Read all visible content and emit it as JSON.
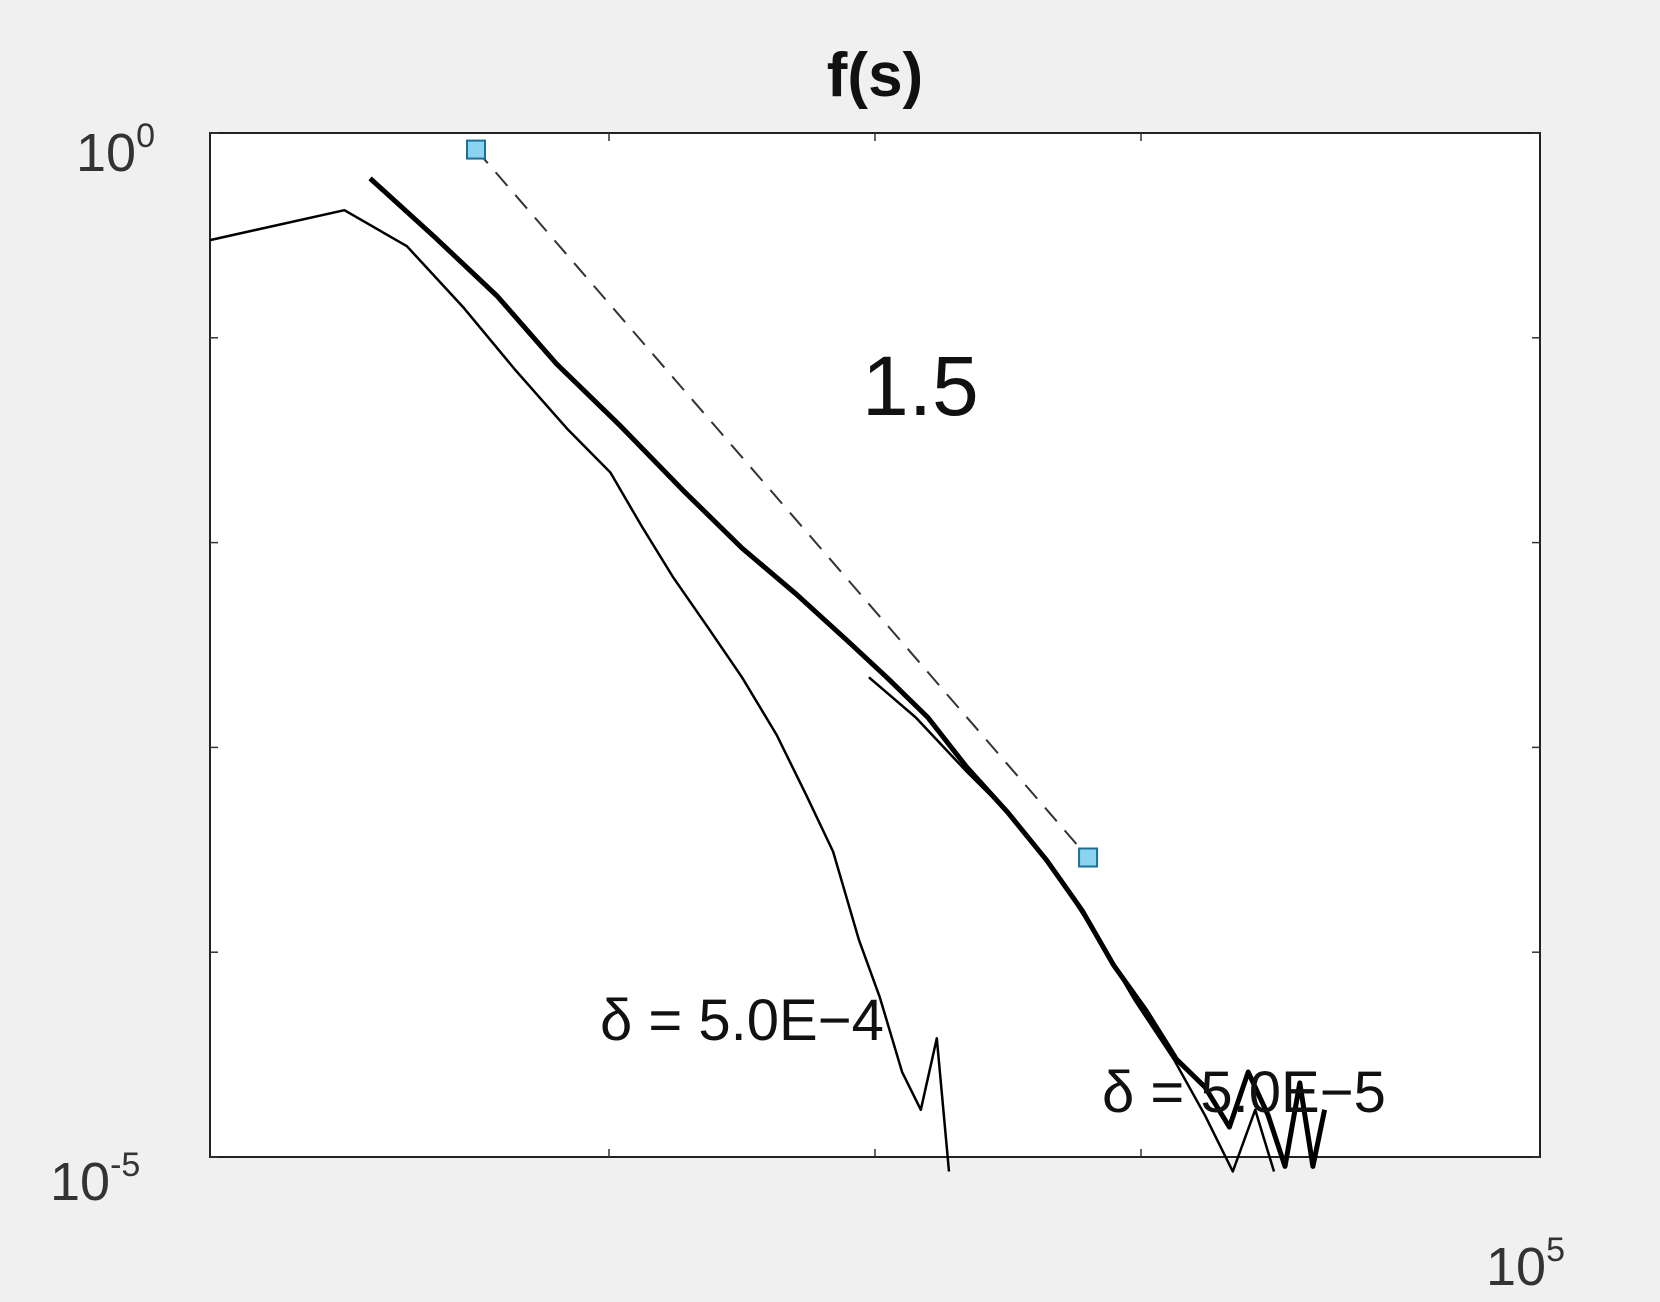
{
  "chart_data": {
    "type": "line",
    "title": "f(s)",
    "xscale": "log",
    "yscale": "log",
    "xlim": [
      1,
      100000
    ],
    "ylim": [
      1e-05,
      1
    ],
    "tick_labels": {
      "y_top": {
        "base": "10",
        "exp": "0"
      },
      "y_bottom": {
        "base": "10",
        "exp": "-5"
      },
      "x_right": {
        "base": "10",
        "exp": "5"
      }
    },
    "grid": false,
    "background_color": "#f0f0f0",
    "plot_color": "#ffffff",
    "series": [
      {
        "label": "δ = 5.0E−4",
        "style": "thin",
        "color": "#000000",
        "x": [
          1,
          3.2,
          5.5,
          9,
          14,
          22,
          32,
          42,
          55,
          75,
          100,
          135,
          175,
          220,
          275,
          330,
          400,
          470,
          540,
          600
        ],
        "y": [
          0.3,
          0.42,
          0.28,
          0.14,
          0.07,
          0.036,
          0.022,
          0.012,
          0.0068,
          0.0038,
          0.0022,
          0.00115,
          0.00058,
          0.00031,
          0.000115,
          6e-05,
          2.6e-05,
          1.7e-05,
          3.8e-05,
          8.5e-06
        ]
      },
      {
        "label": "δ = 5.0E−5",
        "style": "thin",
        "color": "#000000",
        "x": [
          300,
          450,
          700,
          1000,
          1500,
          2200,
          3000,
          4200,
          5500,
          7000,
          8500,
          10000
        ],
        "y": [
          0.0022,
          0.0014,
          0.00076,
          0.00048,
          0.00025,
          0.000115,
          5.8e-05,
          3e-05,
          1.6e-05,
          8.5e-06,
          1.7e-05,
          8.5e-06
        ]
      },
      {
        "label": "",
        "style": "thick",
        "color": "#000000",
        "x": [
          4,
          7,
          12,
          20,
          35,
          60,
          100,
          160,
          250,
          350,
          500,
          700,
          1000,
          1400,
          1900,
          2500,
          3300,
          4300,
          5500,
          6800,
          8000,
          9500,
          11000,
          12500,
          14000,
          15500
        ],
        "y": [
          0.6,
          0.31,
          0.16,
          0.075,
          0.037,
          0.018,
          0.0094,
          0.0056,
          0.0033,
          0.0022,
          0.0014,
          0.0008,
          0.00048,
          0.00028,
          0.00016,
          8.6e-05,
          5.2e-05,
          3e-05,
          2.2e-05,
          1.4e-05,
          2.6e-05,
          1.6e-05,
          9e-06,
          2.3e-05,
          9e-06,
          1.7e-05
        ]
      }
    ],
    "reference_line": {
      "label": "1.5",
      "slope": -1.5,
      "x": [
        10,
        2000
      ],
      "y": [
        0.83,
        0.00029
      ],
      "dash": true,
      "marker": "square",
      "marker_color": "#8ad4ef"
    }
  }
}
